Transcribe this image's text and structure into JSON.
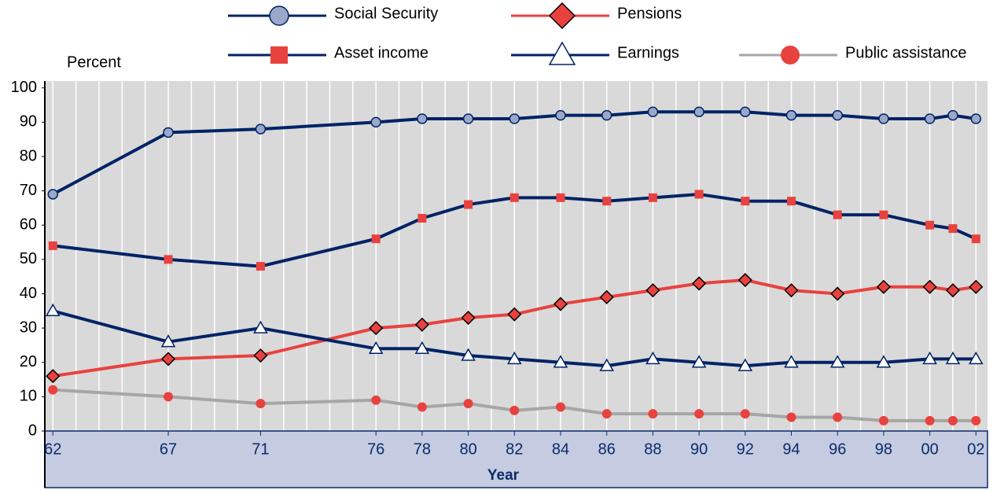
{
  "chart_data": {
    "type": "line",
    "y_axis_label": "Percent",
    "x_axis_label": "Year",
    "x": [
      1962,
      1967,
      1971,
      1976,
      1978,
      1980,
      1982,
      1984,
      1986,
      1988,
      1990,
      1992,
      1994,
      1996,
      1998,
      2000,
      2001,
      2002
    ],
    "series": [
      {
        "name": "Social Security",
        "color": "#002366",
        "marker": "circle",
        "marker_color": "#9aa8c9",
        "values": [
          69,
          87,
          88,
          90,
          91,
          91,
          91,
          92,
          92,
          93,
          93,
          93,
          92,
          92,
          91,
          91,
          92,
          91
        ]
      },
      {
        "name": "Pensions",
        "color": "#e8423f",
        "marker": "diamond",
        "marker_color": "#e8423f",
        "values": [
          16,
          21,
          22,
          30,
          31,
          33,
          34,
          37,
          39,
          41,
          43,
          44,
          41,
          40,
          42,
          42,
          41,
          42
        ]
      },
      {
        "name": "Asset income",
        "color": "#002366",
        "marker": "square",
        "marker_color": "#e8423f",
        "values": [
          54,
          50,
          48,
          56,
          62,
          66,
          68,
          68,
          67,
          68,
          69,
          67,
          67,
          63,
          63,
          60,
          59,
          56
        ]
      },
      {
        "name": "Earnings",
        "color": "#002366",
        "marker": "triangle",
        "marker_color": "#ffffff",
        "values": [
          35,
          26,
          30,
          24,
          24,
          22,
          21,
          20,
          19,
          21,
          20,
          19,
          20,
          20,
          20,
          21,
          21,
          21
        ]
      },
      {
        "name": "Public assistance",
        "color": "#a6a6a6",
        "marker": "dot",
        "marker_color": "#e8423f",
        "values": [
          12,
          10,
          8,
          9,
          7,
          8,
          6,
          7,
          5,
          5,
          5,
          5,
          4,
          4,
          3,
          3,
          3,
          3
        ]
      }
    ],
    "xlim": [
      1961.65,
      2002.5
    ],
    "xticks": [
      {
        "value": 1962,
        "label": "62"
      },
      {
        "value": 1967,
        "label": "67"
      },
      {
        "value": 1971,
        "label": "71"
      },
      {
        "value": 1976,
        "label": "76"
      },
      {
        "value": 1978,
        "label": "78"
      },
      {
        "value": 1980,
        "label": "80"
      },
      {
        "value": 1982,
        "label": "82"
      },
      {
        "value": 1984,
        "label": "84"
      },
      {
        "value": 1986,
        "label": "86"
      },
      {
        "value": 1988,
        "label": "88"
      },
      {
        "value": 1990,
        "label": "90"
      },
      {
        "value": 1992,
        "label": "92"
      },
      {
        "value": 1994,
        "label": "94"
      },
      {
        "value": 1996,
        "label": "96"
      },
      {
        "value": 1998,
        "label": "98"
      },
      {
        "value": 2000,
        "label": "00"
      },
      {
        "value": 2002,
        "label": "02"
      }
    ],
    "ylim": [
      0,
      102
    ],
    "yticks": [
      0,
      10,
      20,
      30,
      40,
      50,
      60,
      70,
      80,
      90,
      100
    ],
    "grid": true
  }
}
